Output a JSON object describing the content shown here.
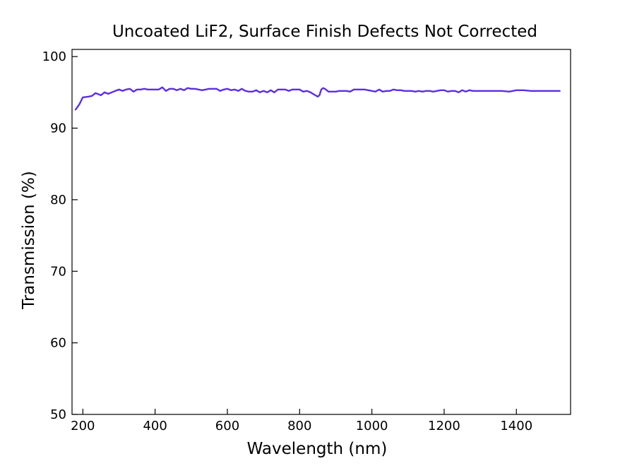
{
  "chart_data": {
    "type": "line",
    "title": "Uncoated LiF2, Surface Finish Defects Not Corrected",
    "xlabel": "Wavelength (nm)",
    "ylabel": "Transmission (%)",
    "xlim": [
      170,
      1550
    ],
    "ylim": [
      50,
      101
    ],
    "xticks": [
      200,
      400,
      600,
      800,
      1000,
      1200,
      1400
    ],
    "yticks": [
      50,
      60,
      70,
      80,
      90,
      100
    ],
    "grid": false,
    "legend": "none",
    "series": [
      {
        "color": "#5b2ee6",
        "x": [
          180,
          190,
          200,
          215,
          225,
          235,
          250,
          260,
          270,
          280,
          290,
          300,
          310,
          320,
          330,
          340,
          350,
          360,
          370,
          380,
          390,
          400,
          410,
          420,
          430,
          440,
          450,
          460,
          470,
          480,
          490,
          500,
          510,
          520,
          530,
          540,
          550,
          560,
          570,
          580,
          590,
          600,
          610,
          620,
          630,
          640,
          650,
          660,
          670,
          680,
          690,
          700,
          710,
          720,
          730,
          740,
          750,
          760,
          770,
          780,
          790,
          800,
          810,
          820,
          830,
          840,
          850,
          855,
          860,
          865,
          870,
          880,
          890,
          900,
          910,
          920,
          930,
          940,
          950,
          960,
          970,
          980,
          990,
          1000,
          1010,
          1020,
          1030,
          1040,
          1050,
          1060,
          1070,
          1080,
          1090,
          1100,
          1110,
          1120,
          1130,
          1140,
          1150,
          1160,
          1170,
          1180,
          1190,
          1200,
          1210,
          1220,
          1230,
          1240,
          1250,
          1260,
          1270,
          1280,
          1300,
          1320,
          1340,
          1360,
          1380,
          1400,
          1420,
          1440,
          1460,
          1480,
          1500,
          1520
        ],
        "y": [
          92.6,
          93.3,
          94.3,
          94.4,
          94.5,
          94.9,
          94.6,
          95.0,
          94.8,
          95.0,
          95.2,
          95.4,
          95.2,
          95.4,
          95.5,
          95.1,
          95.4,
          95.4,
          95.5,
          95.4,
          95.4,
          95.4,
          95.4,
          95.7,
          95.2,
          95.5,
          95.5,
          95.3,
          95.5,
          95.3,
          95.6,
          95.5,
          95.5,
          95.4,
          95.3,
          95.4,
          95.5,
          95.5,
          95.5,
          95.2,
          95.4,
          95.5,
          95.3,
          95.4,
          95.2,
          95.5,
          95.2,
          95.1,
          95.1,
          95.3,
          95.0,
          95.2,
          95.0,
          95.3,
          95.0,
          95.4,
          95.4,
          95.4,
          95.2,
          95.4,
          95.4,
          95.4,
          95.1,
          95.2,
          95.0,
          94.7,
          94.4,
          94.6,
          95.4,
          95.6,
          95.5,
          95.1,
          95.1,
          95.1,
          95.2,
          95.2,
          95.2,
          95.1,
          95.4,
          95.4,
          95.4,
          95.4,
          95.3,
          95.2,
          95.1,
          95.4,
          95.1,
          95.2,
          95.2,
          95.4,
          95.3,
          95.3,
          95.2,
          95.2,
          95.2,
          95.1,
          95.2,
          95.1,
          95.2,
          95.2,
          95.1,
          95.2,
          95.3,
          95.3,
          95.1,
          95.2,
          95.2,
          95.0,
          95.3,
          95.1,
          95.3,
          95.2,
          95.2,
          95.2,
          95.2,
          95.2,
          95.1,
          95.3,
          95.3,
          95.2,
          95.2,
          95.2,
          95.2,
          95.2
        ]
      }
    ]
  }
}
